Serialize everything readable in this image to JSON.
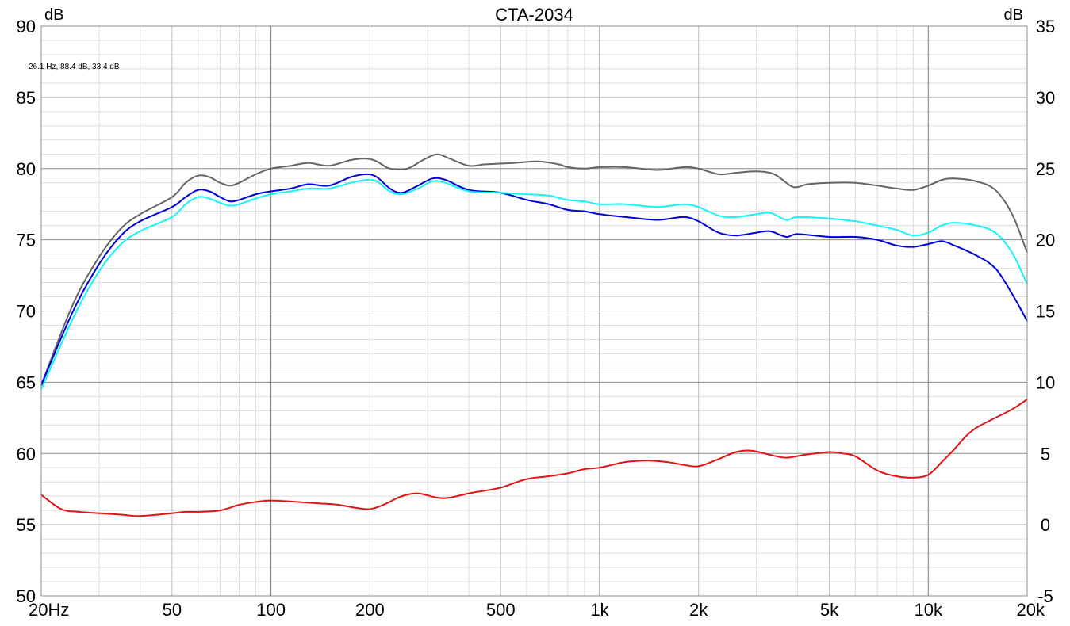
{
  "chart_data": {
    "type": "line",
    "title": "CTA-2034",
    "cursor_readout": "26.1 Hz, 88.4 dB, 33.4 dB",
    "x_scale": "log",
    "xlim": [
      20,
      20000
    ],
    "x_ticks": [
      20,
      50,
      100,
      200,
      500,
      1000,
      2000,
      5000,
      10000,
      20000
    ],
    "x_tick_labels": [
      "20Hz",
      "50",
      "100",
      "200",
      "500",
      "1k",
      "2k",
      "5k",
      "10k",
      "20k"
    ],
    "y_left": {
      "unit": "dB",
      "ylim": [
        50,
        90
      ],
      "ticks": [
        50,
        55,
        60,
        65,
        70,
        75,
        80,
        85,
        90
      ],
      "tick_labels": [
        "50",
        "55",
        "60",
        "65",
        "70",
        "75",
        "80",
        "85",
        "90"
      ]
    },
    "y_right": {
      "unit": "dB",
      "ylim": [
        -5,
        35
      ],
      "ticks": [
        -5,
        0,
        5,
        10,
        15,
        20,
        25,
        30,
        35
      ],
      "tick_labels": [
        "-5",
        "0",
        "5",
        "10",
        "15",
        "20",
        "25",
        "30",
        "35"
      ]
    },
    "grid": true,
    "series": [
      {
        "color": "#646464",
        "axis": "left",
        "points": [
          [
            20,
            64.8
          ],
          [
            25,
            70.5
          ],
          [
            30,
            73.8
          ],
          [
            35,
            75.8
          ],
          [
            40,
            76.8
          ],
          [
            50,
            78.0
          ],
          [
            55,
            79.0
          ],
          [
            60,
            79.5
          ],
          [
            65,
            79.4
          ],
          [
            70,
            79.0
          ],
          [
            75,
            78.8
          ],
          [
            80,
            79.0
          ],
          [
            90,
            79.6
          ],
          [
            100,
            80.0
          ],
          [
            115,
            80.2
          ],
          [
            130,
            80.4
          ],
          [
            150,
            80.2
          ],
          [
            175,
            80.6
          ],
          [
            195,
            80.7
          ],
          [
            210,
            80.5
          ],
          [
            230,
            80.0
          ],
          [
            260,
            80.0
          ],
          [
            290,
            80.6
          ],
          [
            320,
            81.0
          ],
          [
            350,
            80.7
          ],
          [
            400,
            80.2
          ],
          [
            450,
            80.3
          ],
          [
            550,
            80.4
          ],
          [
            650,
            80.5
          ],
          [
            750,
            80.3
          ],
          [
            800,
            80.1
          ],
          [
            900,
            80.0
          ],
          [
            1000,
            80.1
          ],
          [
            1200,
            80.1
          ],
          [
            1500,
            79.9
          ],
          [
            1800,
            80.1
          ],
          [
            2000,
            80.0
          ],
          [
            2300,
            79.6
          ],
          [
            2600,
            79.7
          ],
          [
            3000,
            79.8
          ],
          [
            3400,
            79.6
          ],
          [
            3800,
            78.8
          ],
          [
            4000,
            78.7
          ],
          [
            4300,
            78.9
          ],
          [
            5000,
            79.0
          ],
          [
            6000,
            79.0
          ],
          [
            7000,
            78.8
          ],
          [
            8000,
            78.6
          ],
          [
            9000,
            78.5
          ],
          [
            10000,
            78.8
          ],
          [
            11000,
            79.2
          ],
          [
            12000,
            79.3
          ],
          [
            14000,
            79.1
          ],
          [
            16000,
            78.5
          ],
          [
            18000,
            76.8
          ],
          [
            20000,
            74.1
          ]
        ]
      },
      {
        "color": "#0000dc",
        "axis": "left",
        "points": [
          [
            20,
            64.8
          ],
          [
            25,
            70.0
          ],
          [
            30,
            73.3
          ],
          [
            35,
            75.3
          ],
          [
            40,
            76.3
          ],
          [
            50,
            77.3
          ],
          [
            55,
            78.0
          ],
          [
            60,
            78.5
          ],
          [
            65,
            78.4
          ],
          [
            70,
            78.0
          ],
          [
            75,
            77.7
          ],
          [
            80,
            77.8
          ],
          [
            90,
            78.2
          ],
          [
            100,
            78.4
          ],
          [
            115,
            78.6
          ],
          [
            130,
            78.9
          ],
          [
            150,
            78.8
          ],
          [
            175,
            79.4
          ],
          [
            195,
            79.6
          ],
          [
            210,
            79.4
          ],
          [
            230,
            78.6
          ],
          [
            250,
            78.3
          ],
          [
            280,
            78.8
          ],
          [
            310,
            79.3
          ],
          [
            340,
            79.2
          ],
          [
            400,
            78.5
          ],
          [
            500,
            78.3
          ],
          [
            600,
            77.8
          ],
          [
            700,
            77.5
          ],
          [
            800,
            77.1
          ],
          [
            900,
            77.0
          ],
          [
            1000,
            76.8
          ],
          [
            1200,
            76.6
          ],
          [
            1500,
            76.4
          ],
          [
            1800,
            76.6
          ],
          [
            2000,
            76.3
          ],
          [
            2300,
            75.5
          ],
          [
            2600,
            75.3
          ],
          [
            3000,
            75.5
          ],
          [
            3300,
            75.6
          ],
          [
            3700,
            75.2
          ],
          [
            4000,
            75.4
          ],
          [
            5000,
            75.2
          ],
          [
            6000,
            75.2
          ],
          [
            7000,
            75.0
          ],
          [
            8000,
            74.6
          ],
          [
            9000,
            74.5
          ],
          [
            10000,
            74.7
          ],
          [
            11000,
            74.9
          ],
          [
            12000,
            74.6
          ],
          [
            14000,
            73.9
          ],
          [
            16000,
            73.0
          ],
          [
            18000,
            71.2
          ],
          [
            20000,
            69.3
          ]
        ]
      },
      {
        "color": "#14f5f5",
        "axis": "left",
        "points": [
          [
            20,
            64.5
          ],
          [
            25,
            69.5
          ],
          [
            30,
            72.8
          ],
          [
            35,
            74.7
          ],
          [
            40,
            75.6
          ],
          [
            50,
            76.6
          ],
          [
            55,
            77.5
          ],
          [
            60,
            78.0
          ],
          [
            65,
            77.9
          ],
          [
            70,
            77.6
          ],
          [
            75,
            77.4
          ],
          [
            80,
            77.5
          ],
          [
            90,
            77.9
          ],
          [
            100,
            78.2
          ],
          [
            115,
            78.4
          ],
          [
            130,
            78.6
          ],
          [
            150,
            78.6
          ],
          [
            175,
            79.0
          ],
          [
            195,
            79.2
          ],
          [
            210,
            79.1
          ],
          [
            230,
            78.4
          ],
          [
            250,
            78.2
          ],
          [
            280,
            78.6
          ],
          [
            310,
            79.1
          ],
          [
            340,
            79.0
          ],
          [
            400,
            78.4
          ],
          [
            500,
            78.3
          ],
          [
            600,
            78.2
          ],
          [
            700,
            78.1
          ],
          [
            800,
            77.8
          ],
          [
            900,
            77.7
          ],
          [
            1000,
            77.5
          ],
          [
            1200,
            77.5
          ],
          [
            1500,
            77.3
          ],
          [
            1800,
            77.5
          ],
          [
            2000,
            77.3
          ],
          [
            2300,
            76.7
          ],
          [
            2600,
            76.6
          ],
          [
            3000,
            76.8
          ],
          [
            3300,
            76.9
          ],
          [
            3700,
            76.4
          ],
          [
            4000,
            76.6
          ],
          [
            5000,
            76.5
          ],
          [
            6000,
            76.3
          ],
          [
            7000,
            76.0
          ],
          [
            8000,
            75.7
          ],
          [
            9000,
            75.3
          ],
          [
            10000,
            75.5
          ],
          [
            11000,
            76.0
          ],
          [
            12000,
            76.2
          ],
          [
            14000,
            76.0
          ],
          [
            16000,
            75.5
          ],
          [
            18000,
            74.1
          ],
          [
            20000,
            71.9
          ]
        ]
      },
      {
        "color": "#e11414",
        "axis": "right",
        "points": [
          [
            20,
            2.1
          ],
          [
            23,
            1.1
          ],
          [
            26,
            0.9
          ],
          [
            30,
            0.8
          ],
          [
            35,
            0.7
          ],
          [
            40,
            0.6
          ],
          [
            50,
            0.8
          ],
          [
            55,
            0.9
          ],
          [
            60,
            0.9
          ],
          [
            70,
            1.0
          ],
          [
            80,
            1.4
          ],
          [
            90,
            1.6
          ],
          [
            100,
            1.7
          ],
          [
            120,
            1.6
          ],
          [
            140,
            1.5
          ],
          [
            160,
            1.4
          ],
          [
            180,
            1.2
          ],
          [
            200,
            1.1
          ],
          [
            220,
            1.4
          ],
          [
            250,
            2.0
          ],
          [
            280,
            2.2
          ],
          [
            320,
            1.9
          ],
          [
            350,
            1.9
          ],
          [
            400,
            2.2
          ],
          [
            450,
            2.4
          ],
          [
            500,
            2.6
          ],
          [
            600,
            3.2
          ],
          [
            700,
            3.4
          ],
          [
            800,
            3.6
          ],
          [
            900,
            3.9
          ],
          [
            1000,
            4.0
          ],
          [
            1200,
            4.4
          ],
          [
            1400,
            4.5
          ],
          [
            1600,
            4.4
          ],
          [
            1800,
            4.2
          ],
          [
            2000,
            4.1
          ],
          [
            2300,
            4.6
          ],
          [
            2600,
            5.1
          ],
          [
            2900,
            5.2
          ],
          [
            3300,
            4.9
          ],
          [
            3700,
            4.7
          ],
          [
            4200,
            4.9
          ],
          [
            5000,
            5.1
          ],
          [
            5500,
            5.0
          ],
          [
            6000,
            4.8
          ],
          [
            7000,
            3.8
          ],
          [
            8000,
            3.4
          ],
          [
            9000,
            3.3
          ],
          [
            10000,
            3.5
          ],
          [
            11000,
            4.4
          ],
          [
            12000,
            5.3
          ],
          [
            13000,
            6.2
          ],
          [
            14000,
            6.8
          ],
          [
            16000,
            7.5
          ],
          [
            18000,
            8.1
          ],
          [
            20000,
            8.8
          ]
        ]
      }
    ]
  }
}
